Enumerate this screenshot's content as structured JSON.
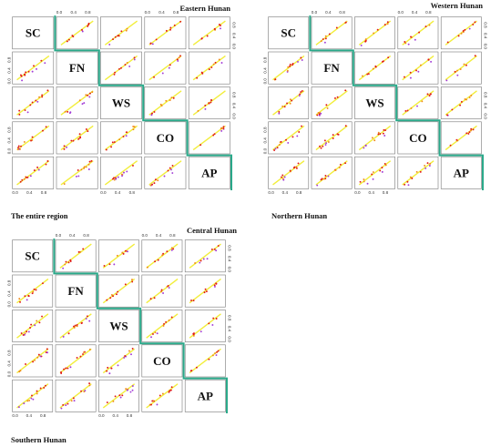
{
  "region_labels": {
    "eastern": "Eastern Hunan",
    "western": "Western Hunan",
    "entire": "The entire region",
    "northern": "Northern Hunan",
    "central": "Central Hunan",
    "southern": "Southern Hunan"
  },
  "variables": [
    "SC",
    "FN",
    "WS",
    "CO",
    "AP"
  ],
  "tick_labels": [
    "0.0",
    "0.4",
    "0.8"
  ],
  "colors": {
    "fit_line": "#f2ee3c",
    "divider": "#2aa98a",
    "panel_border": "#777777",
    "point_red": "#e01818",
    "point_orange": "#f08a1a",
    "point_purple": "#a23bd6"
  },
  "chart_data": [
    {
      "type": "scatter",
      "matrix": "pairwise scatter matrix",
      "upper_triangle_region": "Eastern Hunan",
      "lower_triangle_region": "The entire region",
      "variables": [
        "SC",
        "FN",
        "WS",
        "CO",
        "AP"
      ],
      "xlim": [
        0,
        1
      ],
      "ylim": [
        0,
        1
      ],
      "tick_labels": [
        "0.0",
        "0.4",
        "0.8"
      ],
      "fit_line": "y = x"
    },
    {
      "type": "scatter",
      "matrix": "pairwise scatter matrix",
      "upper_triangle_region": "Western Hunan",
      "lower_triangle_region": "Northern Hunan",
      "variables": [
        "SC",
        "FN",
        "WS",
        "CO",
        "AP"
      ],
      "xlim": [
        0,
        1
      ],
      "ylim": [
        0,
        1
      ],
      "tick_labels": [
        "0.0",
        "0.4",
        "0.8"
      ],
      "fit_line": "y = x"
    },
    {
      "type": "scatter",
      "matrix": "pairwise scatter matrix",
      "upper_triangle_region": "Central Hunan",
      "lower_triangle_region": "Southern Hunan",
      "variables": [
        "SC",
        "FN",
        "WS",
        "CO",
        "AP"
      ],
      "xlim": [
        0,
        1
      ],
      "ylim": [
        0,
        1
      ],
      "tick_labels": [
        "0.0",
        "0.4",
        "0.8"
      ],
      "fit_line": "y = x"
    }
  ]
}
